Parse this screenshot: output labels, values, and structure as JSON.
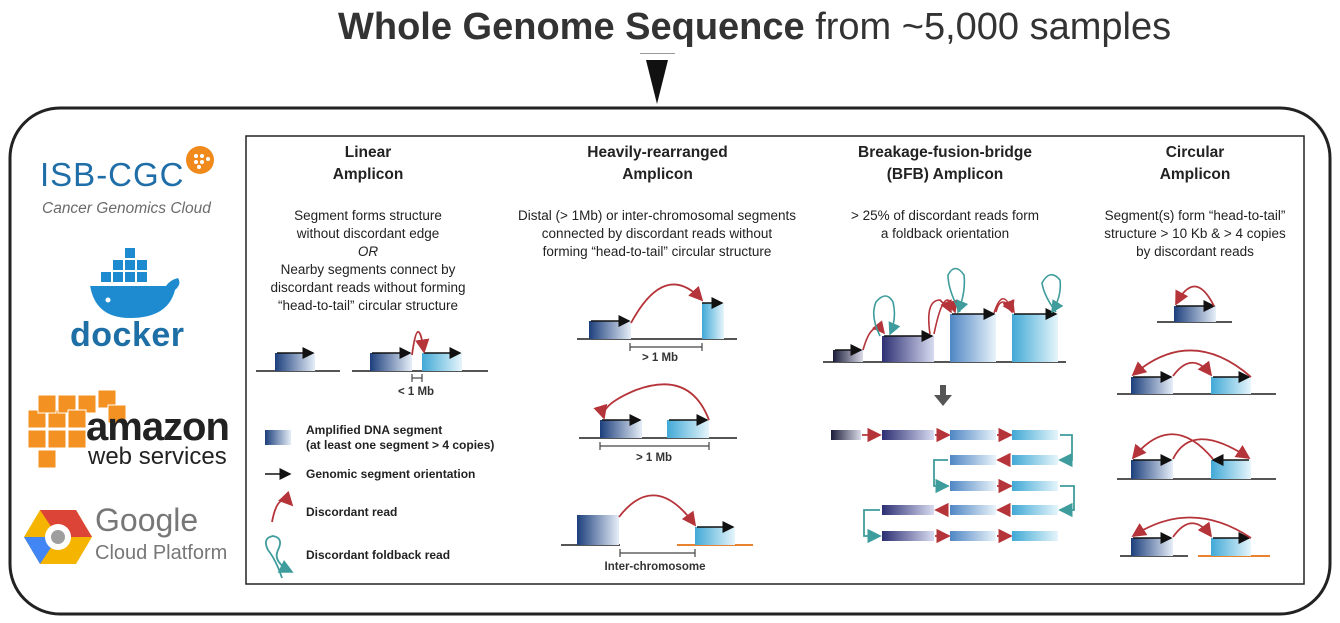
{
  "title": {
    "bold": "Whole Genome Sequence",
    "rest": " from ~5,000 samples"
  },
  "logos": {
    "isb_cgc": "ISB-CGC",
    "isb_cgc_sub": "Cancer Genomics Cloud",
    "docker": "docker",
    "amazon": "amazon",
    "aws": "web services",
    "google": "Google",
    "gcp": "Cloud Platform"
  },
  "columns": [
    {
      "title1": "Linear",
      "title2": "Amplicon",
      "desc1": "Segment forms structure",
      "desc2": "without discordant edge",
      "desc_or": "OR",
      "desc3": "Nearby segments connect by",
      "desc4": "discordant reads without forming",
      "desc5": "“head-to-tail” circular structure",
      "dist": "< 1 Mb"
    },
    {
      "title1": "Heavily-rearranged",
      "title2": "Amplicon",
      "desc1": "Distal (> 1Mb) or inter-chromosomal segments",
      "desc2": "connected by discordant reads without",
      "desc3": "forming “head-to-tail” circular structure",
      "dist1": "> 1 Mb",
      "dist2": "> 1 Mb",
      "dist3": "Inter-chromosome"
    },
    {
      "title1": "Breakage-fusion-bridge",
      "title2": "(BFB) Amplicon",
      "desc1": "> 25% of discordant reads form",
      "desc2": "a foldback orientation"
    },
    {
      "title1": "Circular",
      "title2": "Amplicon",
      "desc1": "Segment(s) form “head-to-tail”",
      "desc2": "structure > 10 Kb & > 4 copies",
      "desc3": "by discordant reads"
    }
  ],
  "legend": {
    "segment1": "Amplified DNA segment",
    "segment2": "(at least one segment > 4 copies)",
    "orientation": "Genomic segment orientation",
    "discordant": "Discordant read",
    "foldback": "Discordant foldback read"
  },
  "colors": {
    "dark_blue": "#1f2a5a",
    "light_blue": "#9fd2ea",
    "red": "#b5343a",
    "teal": "#3f9c9c",
    "orange": "#e8822e"
  }
}
